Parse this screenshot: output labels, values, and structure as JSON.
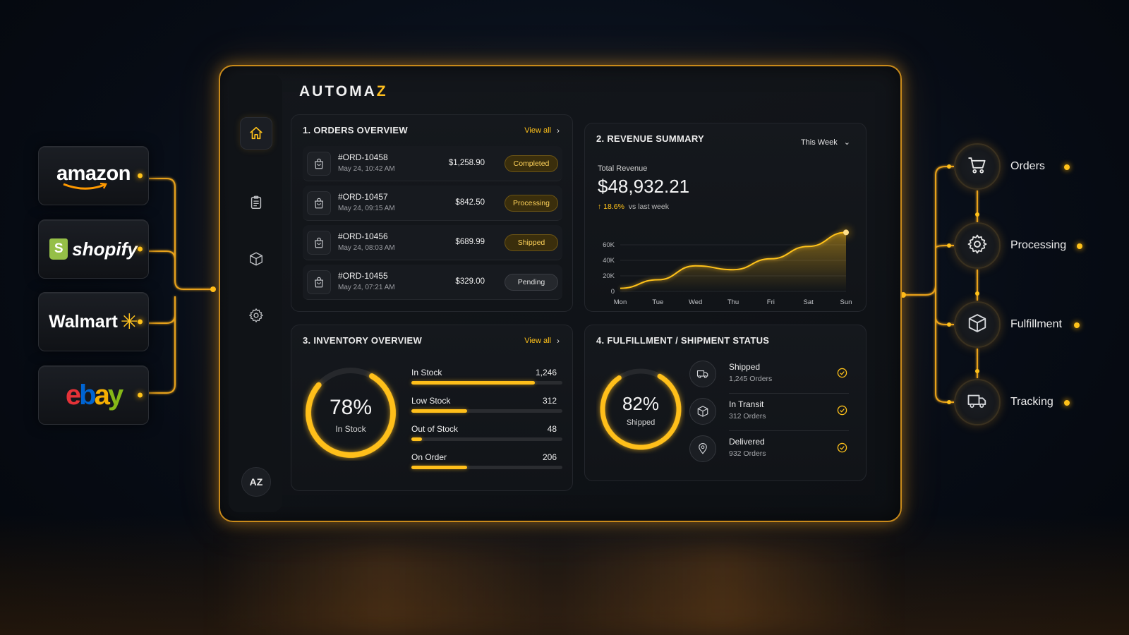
{
  "brand": {
    "prefix": "AUTOMA",
    "accent": "Z",
    "avatar": "AZ"
  },
  "marketplaces": {
    "amazon": "amazon",
    "shopify": "shopify",
    "walmart": "Walmart",
    "ebay": {
      "e": "e",
      "b": "b",
      "a": "a",
      "y": "y"
    }
  },
  "orders": {
    "title": "1. ORDERS OVERVIEW",
    "view_all": "View all",
    "rows": [
      {
        "id": "#ORD-10458",
        "date": "May 24, 10:42 AM",
        "amount": "$1,258.90",
        "status": "Completed"
      },
      {
        "id": "#ORD-10457",
        "date": "May 24, 09:15 AM",
        "amount": "$842.50",
        "status": "Processing"
      },
      {
        "id": "#ORD-10456",
        "date": "May 24, 08:03 AM",
        "amount": "$689.99",
        "status": "Shipped"
      },
      {
        "id": "#ORD-10455",
        "date": "May 24, 07:21 AM",
        "amount": "$329.00",
        "status": "Pending"
      }
    ]
  },
  "revenue": {
    "title": "2. REVENUE SUMMARY",
    "range": "This Week",
    "total_label": "Total Revenue",
    "total_value": "$48,932.21",
    "change_pct": "18.6%",
    "change_text": "vs last week"
  },
  "chart_data": {
    "type": "area",
    "categories": [
      "Mon",
      "Tue",
      "Wed",
      "Thu",
      "Fri",
      "Sat",
      "Sun"
    ],
    "values": [
      4,
      15,
      33,
      28,
      42,
      58,
      76
    ],
    "yticks": [
      "0",
      "20K",
      "40K",
      "60K"
    ],
    "ylim": [
      0,
      80
    ],
    "title": "",
    "xlabel": "",
    "ylabel": ""
  },
  "inventory": {
    "title": "3. INVENTORY OVERVIEW",
    "view_all": "View all",
    "donut_value": "78%",
    "donut_label": "In Stock",
    "donut_fraction": 0.78,
    "rows": [
      {
        "name": "In Stock",
        "value": "1,246",
        "fraction": 0.82
      },
      {
        "name": "Low Stock",
        "value": "312",
        "fraction": 0.37
      },
      {
        "name": "Out of Stock",
        "value": "48",
        "fraction": 0.07
      },
      {
        "name": "On Order",
        "value": "206",
        "fraction": 0.37
      }
    ]
  },
  "fulfillment": {
    "title": "4. FULFILLMENT / SHIPMENT STATUS",
    "donut_value": "82%",
    "donut_label": "Shipped",
    "donut_fraction": 0.82,
    "rows": [
      {
        "name": "Shipped",
        "count": "1,245 Orders",
        "icon": "truck-icon"
      },
      {
        "name": "In Transit",
        "count": "312 Orders",
        "icon": "box-icon"
      },
      {
        "name": "Delivered",
        "count": "932 Orders",
        "icon": "location-pin-icon"
      }
    ]
  },
  "pipeline": {
    "stages": [
      {
        "label": "Orders",
        "icon": "cart-icon"
      },
      {
        "label": "Processing",
        "icon": "gear-icon"
      },
      {
        "label": "Fulfillment",
        "icon": "box-icon"
      },
      {
        "label": "Tracking",
        "icon": "truck-icon"
      }
    ]
  },
  "colors": {
    "accent": "#ffc21a",
    "panel_border": "#c98a1a",
    "bg": "#070c15"
  }
}
